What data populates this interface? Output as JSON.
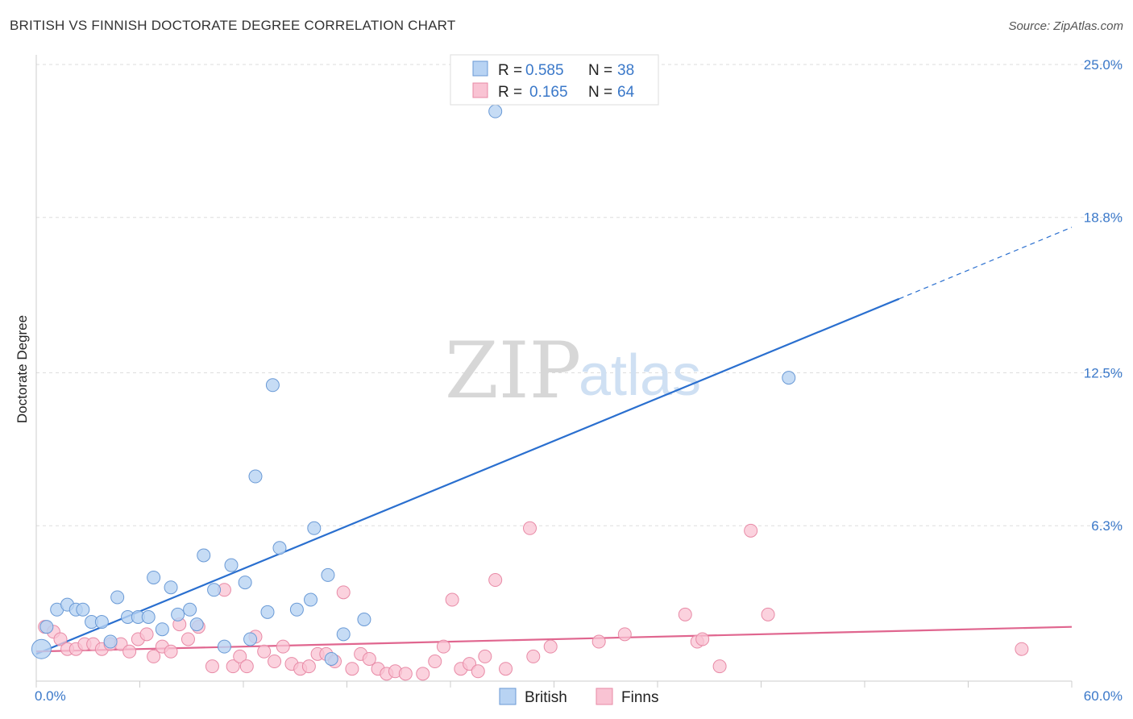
{
  "header": {
    "title": "BRITISH VS FINNISH DOCTORATE DEGREE CORRELATION CHART",
    "source": "Source: ZipAtlas.com"
  },
  "watermark": {
    "part1": "ZIP",
    "part2": "atlas"
  },
  "colors": {
    "british_fill": "#b8d3f3",
    "british_stroke": "#6a9ad6",
    "british_line": "#2a6fcf",
    "finns_fill": "#f9c3d3",
    "finns_stroke": "#e88aa6",
    "finns_line": "#e0668f",
    "grid": "#dddddd",
    "tick_text": "#3a78c9"
  },
  "legend": {
    "rows": [
      {
        "r_label": "R =",
        "r_value": "0.585",
        "n_label": "N =",
        "n_value": "38"
      },
      {
        "r_label": "R =",
        "r_value": "0.165",
        "n_label": "N =",
        "n_value": "64"
      }
    ]
  },
  "chart_data": {
    "type": "scatter",
    "title": "BRITISH VS FINNISH DOCTORATE DEGREE CORRELATION CHART",
    "xlabel": "",
    "ylabel": "Doctorate Degree",
    "xlim": [
      0,
      60
    ],
    "ylim": [
      0,
      25.0
    ],
    "x_tick_labels": [
      "0.0%",
      "60.0%"
    ],
    "y_ticks": [
      6.3,
      12.5,
      18.8,
      25.0
    ],
    "y_tick_labels": [
      "6.3%",
      "12.5%",
      "18.8%",
      "25.0%"
    ],
    "grid": true,
    "legend_position": "top-center",
    "series": [
      {
        "name": "British",
        "r": 0.585,
        "n": 38,
        "trend": {
          "x0": 0.0,
          "y0": 1.1,
          "x1": 50.0,
          "y1": 15.5,
          "dash_x1": 60.0,
          "dash_y1": 18.4
        },
        "points": [
          [
            0.3,
            1.3
          ],
          [
            0.6,
            2.2
          ],
          [
            1.2,
            2.9
          ],
          [
            1.8,
            3.1
          ],
          [
            2.3,
            2.9
          ],
          [
            2.7,
            2.9
          ],
          [
            3.2,
            2.4
          ],
          [
            3.8,
            2.4
          ],
          [
            4.3,
            1.6
          ],
          [
            4.7,
            3.4
          ],
          [
            5.3,
            2.6
          ],
          [
            5.9,
            2.6
          ],
          [
            6.5,
            2.6
          ],
          [
            6.8,
            4.2
          ],
          [
            7.3,
            2.1
          ],
          [
            7.8,
            3.8
          ],
          [
            8.2,
            2.7
          ],
          [
            8.9,
            2.9
          ],
          [
            9.3,
            2.3
          ],
          [
            9.7,
            5.1
          ],
          [
            10.3,
            3.7
          ],
          [
            10.9,
            1.4
          ],
          [
            11.3,
            4.7
          ],
          [
            12.1,
            4.0
          ],
          [
            12.4,
            1.7
          ],
          [
            12.7,
            8.3
          ],
          [
            13.4,
            2.8
          ],
          [
            13.7,
            12.0
          ],
          [
            14.1,
            5.4
          ],
          [
            15.1,
            2.9
          ],
          [
            15.9,
            3.3
          ],
          [
            16.1,
            6.2
          ],
          [
            16.9,
            4.3
          ],
          [
            17.1,
            0.9
          ],
          [
            17.8,
            1.9
          ],
          [
            19.0,
            2.5
          ],
          [
            26.6,
            23.1
          ],
          [
            43.6,
            12.3
          ]
        ]
      },
      {
        "name": "Finns",
        "r": 0.165,
        "n": 64,
        "trend": {
          "x0": 0.0,
          "y0": 1.2,
          "x1": 60.0,
          "y1": 2.2
        },
        "points": [
          [
            0.5,
            2.2
          ],
          [
            1.0,
            2.0
          ],
          [
            1.4,
            1.7
          ],
          [
            1.8,
            1.3
          ],
          [
            2.3,
            1.3
          ],
          [
            2.8,
            1.5
          ],
          [
            3.3,
            1.5
          ],
          [
            3.8,
            1.3
          ],
          [
            4.3,
            1.5
          ],
          [
            4.9,
            1.5
          ],
          [
            5.4,
            1.2
          ],
          [
            5.9,
            1.7
          ],
          [
            6.4,
            1.9
          ],
          [
            6.8,
            1.0
          ],
          [
            7.3,
            1.4
          ],
          [
            7.8,
            1.2
          ],
          [
            8.3,
            2.3
          ],
          [
            8.8,
            1.7
          ],
          [
            9.4,
            2.2
          ],
          [
            10.2,
            0.6
          ],
          [
            10.9,
            3.7
          ],
          [
            11.4,
            0.6
          ],
          [
            11.8,
            1.0
          ],
          [
            12.2,
            0.6
          ],
          [
            12.7,
            1.8
          ],
          [
            13.2,
            1.2
          ],
          [
            13.8,
            0.8
          ],
          [
            14.3,
            1.4
          ],
          [
            14.8,
            0.7
          ],
          [
            15.3,
            0.5
          ],
          [
            15.8,
            0.6
          ],
          [
            16.3,
            1.1
          ],
          [
            16.8,
            1.1
          ],
          [
            17.3,
            0.8
          ],
          [
            17.8,
            3.6
          ],
          [
            18.3,
            0.5
          ],
          [
            18.8,
            1.1
          ],
          [
            19.3,
            0.9
          ],
          [
            19.8,
            0.5
          ],
          [
            20.3,
            0.3
          ],
          [
            20.8,
            0.4
          ],
          [
            21.4,
            0.3
          ],
          [
            22.4,
            0.3
          ],
          [
            23.1,
            0.8
          ],
          [
            23.6,
            1.4
          ],
          [
            24.1,
            3.3
          ],
          [
            24.6,
            0.5
          ],
          [
            25.1,
            0.7
          ],
          [
            25.6,
            0.4
          ],
          [
            26.0,
            1.0
          ],
          [
            26.6,
            4.1
          ],
          [
            27.2,
            0.5
          ],
          [
            28.6,
            6.2
          ],
          [
            28.8,
            1.0
          ],
          [
            29.8,
            1.4
          ],
          [
            32.6,
            1.6
          ],
          [
            34.1,
            1.9
          ],
          [
            37.6,
            2.7
          ],
          [
            38.3,
            1.6
          ],
          [
            38.6,
            1.7
          ],
          [
            39.6,
            0.6
          ],
          [
            41.4,
            6.1
          ],
          [
            42.4,
            2.7
          ],
          [
            57.1,
            1.3
          ]
        ]
      }
    ]
  }
}
